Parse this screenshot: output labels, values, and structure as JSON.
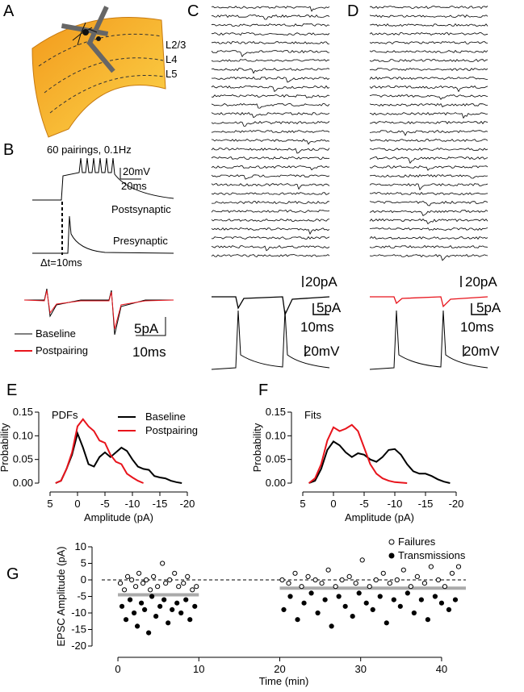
{
  "panels": {
    "A": {
      "label": "A",
      "layers": [
        "L2/3",
        "L4",
        "L5"
      ]
    },
    "B": {
      "label": "B",
      "protocol": "60 pairings, 0.1Hz",
      "scale_voltage": "20mV",
      "scale_time": "20ms",
      "postsynaptic": "Postsynaptic",
      "presynaptic": "Presynaptic",
      "delay": "Δt=10ms",
      "legend": [
        "Baseline",
        "Postpairing"
      ],
      "scale_current": "5pA",
      "scale_time_2": "10ms"
    },
    "C": {
      "label": "C",
      "scale_current": "20pA",
      "scale_current_2": "5pA",
      "scale_time": "10ms",
      "scale_voltage": "20mV"
    },
    "D": {
      "label": "D",
      "scale_current": "20pA",
      "scale_current_2": "5pA",
      "scale_time": "10ms",
      "scale_voltage": "20mV"
    }
  },
  "chart_data": [
    {
      "type": "line",
      "panel": "E",
      "annotation": "PDFs",
      "xlabel": "Amplitude (pA)",
      "ylabel": "Probability",
      "x": [
        4,
        3,
        2,
        1,
        0,
        -1,
        -2,
        -3,
        -4,
        -5,
        -6,
        -7,
        -8,
        -9,
        -10,
        -11,
        -12,
        -13,
        -14,
        -15,
        -16,
        -17,
        -18,
        -19
      ],
      "series": [
        {
          "name": "Baseline",
          "color": "#000000",
          "values": [
            0,
            0.005,
            0.03,
            0.06,
            0.105,
            0.075,
            0.04,
            0.035,
            0.055,
            0.065,
            0.055,
            0.065,
            0.075,
            0.068,
            0.05,
            0.035,
            0.03,
            0.028,
            0.015,
            0.012,
            0.01,
            0.005,
            0.002,
            0
          ]
        },
        {
          "name": "Postpairing",
          "color": "#e8141c",
          "values": [
            0,
            0.005,
            0.03,
            0.065,
            0.12,
            0.135,
            0.12,
            0.11,
            0.09,
            0.085,
            0.06,
            0.045,
            0.04,
            0.02,
            0.012,
            0.005,
            0,
            null,
            null,
            null,
            null,
            null,
            null,
            null
          ]
        }
      ],
      "xlim": [
        5,
        -20
      ],
      "xticks": [
        5,
        0,
        -5,
        -10,
        -15,
        -20
      ],
      "ylim": [
        0,
        0.15
      ],
      "yticks": [
        {
          "value": 0,
          "label": "0.00"
        },
        {
          "value": 0.05,
          "label": "0.05"
        },
        {
          "value": 0.1,
          "label": "0.10"
        },
        {
          "value": 0.15,
          "label": "0.15"
        }
      ],
      "legend": "top-right"
    },
    {
      "type": "line",
      "panel": "F",
      "annotation": "Fits",
      "xlabel": "Amplitude (pA)",
      "ylabel": "Probability",
      "x": [
        4,
        3,
        2,
        1,
        0,
        -1,
        -2,
        -3,
        -4,
        -5,
        -6,
        -7,
        -8,
        -9,
        -10,
        -11,
        -12,
        -13,
        -14,
        -15,
        -16,
        -17,
        -18,
        -19
      ],
      "series": [
        {
          "color": "#000000",
          "values": [
            0,
            0.005,
            0.03,
            0.07,
            0.088,
            0.08,
            0.065,
            0.055,
            0.063,
            0.06,
            0.05,
            0.045,
            0.055,
            0.07,
            0.072,
            0.06,
            0.04,
            0.025,
            0.02,
            0.02,
            0.015,
            0.008,
            0.003,
            0
          ]
        },
        {
          "color": "#e8141c",
          "values": [
            0,
            0.01,
            0.04,
            0.09,
            0.118,
            0.11,
            0.115,
            0.123,
            0.11,
            0.075,
            0.04,
            0.02,
            0.01,
            0.005,
            0.002,
            0.001,
            0,
            null,
            null,
            null,
            null,
            null,
            null,
            null
          ]
        }
      ],
      "xlim": [
        5,
        -20
      ],
      "xticks": [
        5,
        0,
        -5,
        -10,
        -15,
        -20
      ],
      "ylim": [
        0,
        0.15
      ],
      "yticks": [
        {
          "value": 0,
          "label": "0.00"
        },
        {
          "value": 0.05,
          "label": "0.05"
        },
        {
          "value": 0.1,
          "label": "0.10"
        },
        {
          "value": 0.15,
          "label": "0.15"
        }
      ]
    },
    {
      "type": "scatter",
      "panel": "G",
      "xlabel": "Time (min)",
      "ylabel": "EPSC Amplitude (pA)",
      "series": [
        {
          "name": "Failures",
          "marker": "open",
          "color": "#000000",
          "x": [
            0.3,
            0.8,
            1.2,
            1.7,
            2.2,
            2.6,
            3.1,
            3.5,
            4.0,
            4.4,
            4.9,
            5.5,
            5.9,
            6.4,
            7.0,
            7.5,
            8.1,
            8.6,
            9.2,
            9.7,
            20.3,
            21.1,
            21.9,
            22.7,
            23.5,
            24.4,
            25.2,
            26.0,
            26.9,
            27.7,
            28.6,
            29.4,
            30.2,
            31.1,
            31.9,
            32.8,
            33.6,
            34.5,
            35.3,
            36.2,
            37.0,
            37.9,
            38.7,
            39.6,
            40.4,
            41.3,
            42.1
          ],
          "values": [
            -1,
            -3,
            1,
            0,
            -2,
            2,
            -1,
            0,
            -3,
            1,
            -2,
            5,
            -1,
            0,
            2,
            -2,
            -1,
            1,
            -3,
            -2,
            0,
            -1,
            2,
            -2,
            1,
            0,
            -1,
            3,
            -2,
            0,
            1,
            -1,
            6,
            -2,
            0,
            2,
            -1,
            0,
            3,
            -2,
            1,
            -1,
            4,
            0,
            -2,
            2,
            4
          ]
        },
        {
          "name": "Transmissions",
          "marker": "filled",
          "color": "#000000",
          "x": [
            0.5,
            1.0,
            1.5,
            2.0,
            2.4,
            2.9,
            3.3,
            3.8,
            4.2,
            4.7,
            5.2,
            5.7,
            6.2,
            6.7,
            7.3,
            7.8,
            8.4,
            8.9,
            9.5,
            20.5,
            21.3,
            22.2,
            23.0,
            23.9,
            24.7,
            25.6,
            26.4,
            27.3,
            28.1,
            29.0,
            29.8,
            30.7,
            31.5,
            32.4,
            33.2,
            34.1,
            34.9,
            35.8,
            36.6,
            37.5,
            38.3,
            39.2,
            40.0,
            40.9,
            41.7
          ],
          "values": [
            -8,
            -12,
            -6,
            -10,
            -14,
            -7,
            -9,
            -16,
            -5,
            -11,
            -8,
            -6,
            -13,
            -9,
            -7,
            -10,
            -6,
            -12,
            -8,
            -9,
            -5,
            -12,
            -7,
            -4,
            -10,
            -6,
            -14,
            -5,
            -8,
            -11,
            -4,
            -7,
            -9,
            -5,
            -13,
            -6,
            -8,
            -4,
            -10,
            -6,
            -12,
            -5,
            -7,
            -9,
            -6
          ]
        }
      ],
      "mean_lines": [
        {
          "color": "#aaaaaa",
          "x": [
            0,
            10
          ],
          "values": [
            -4.5,
            -4.5
          ]
        },
        {
          "color": "#aaaaaa",
          "x": [
            20,
            43
          ],
          "values": [
            -2.5,
            -2.5
          ]
        }
      ],
      "xlim": [
        -2,
        43
      ],
      "xticks": [
        0,
        10,
        20,
        30,
        40
      ],
      "ylim": [
        -20,
        10
      ],
      "yticks": [
        -20,
        -15,
        -10,
        -5,
        0,
        5,
        10
      ],
      "legend": "top-right"
    }
  ]
}
